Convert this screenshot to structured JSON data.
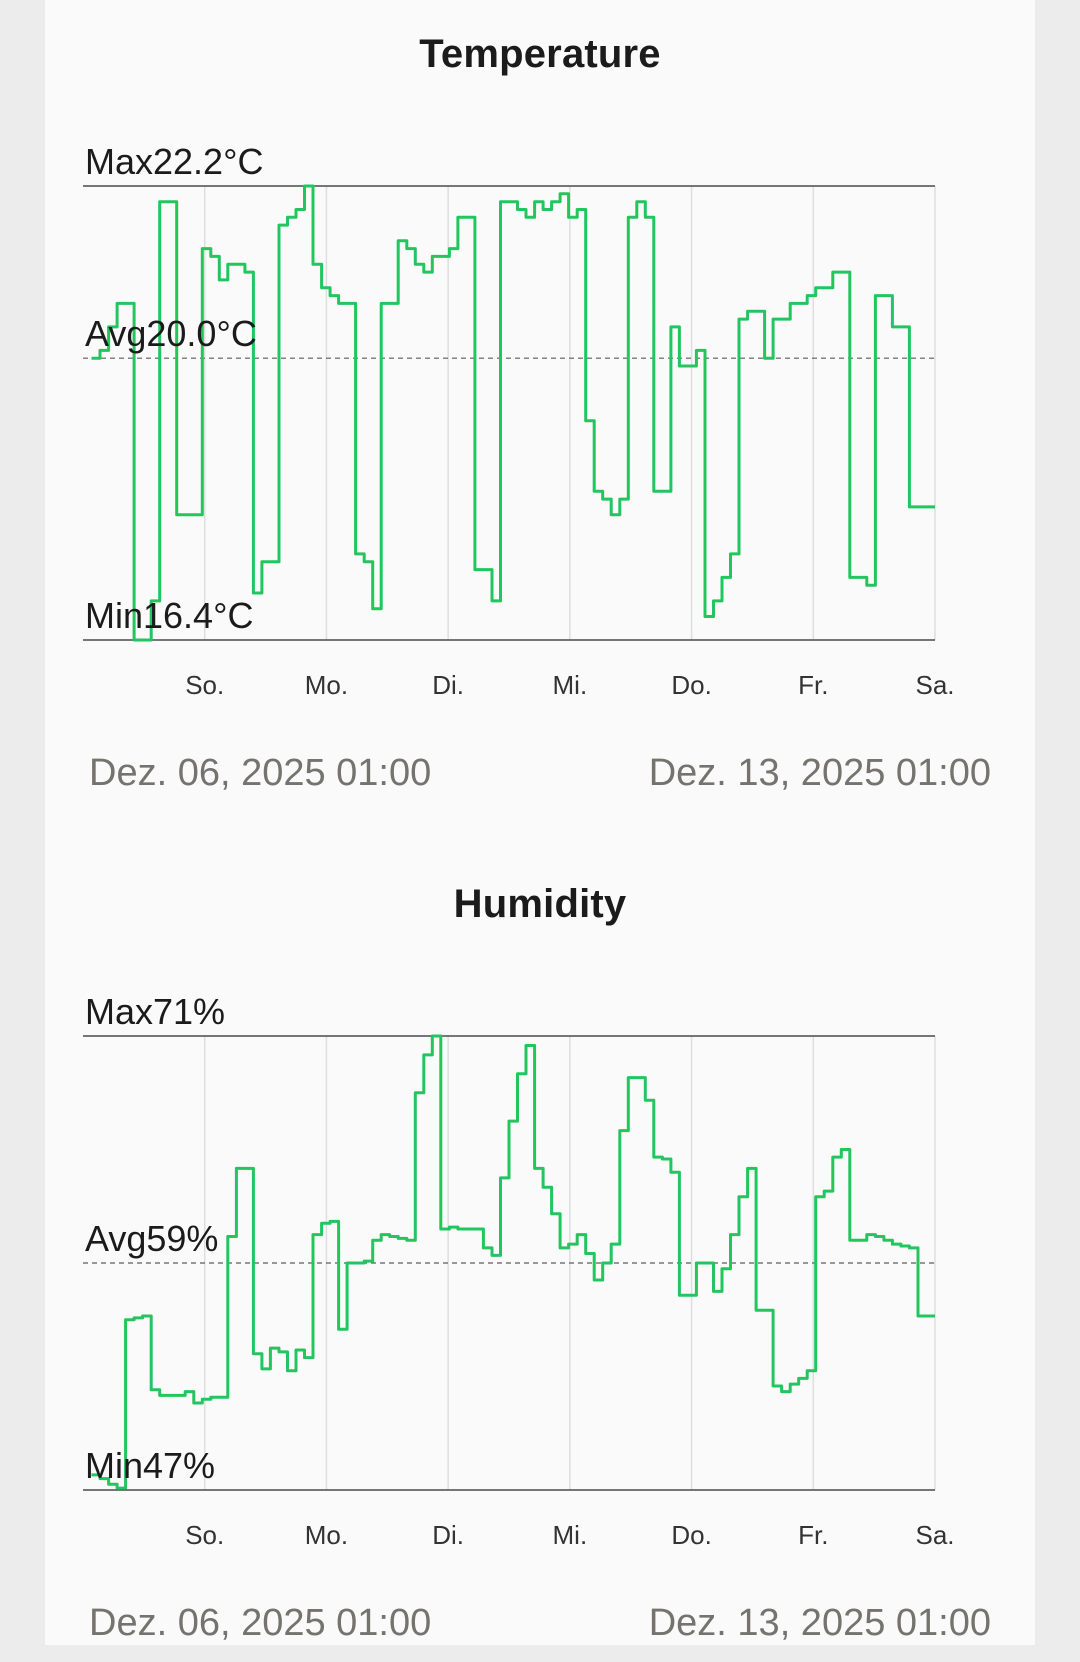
{
  "colors": {
    "line": "#22c55e",
    "frame": "#4a4a4a",
    "grid": "#dedede",
    "avg_line": "#5c5c5c",
    "date_text": "#75736e",
    "background": "#fafafa"
  },
  "charts": {
    "temperature": {
      "title": "Temperature",
      "max_label": "Max22.2°C",
      "avg_label": "Avg20.0°C",
      "min_label": "Min16.4°C",
      "start_label": "Dez. 06, 2025 01:00",
      "end_label": "Dez. 13, 2025 01:00"
    },
    "humidity": {
      "title": "Humidity",
      "max_label": "Max71%",
      "avg_label": "Avg59%",
      "min_label": "Min47%",
      "start_label": "Dez. 06, 2025 01:00",
      "end_label": "Dez. 13, 2025 01:00"
    }
  },
  "chart_data": [
    {
      "type": "line",
      "title": "Temperature",
      "unit": "°C",
      "x_ticks": [
        "So.",
        "Mo.",
        "Di.",
        "Mi.",
        "Do.",
        "Fr.",
        "Sa."
      ],
      "x_range": [
        "Dez. 06, 2025 01:00",
        "Dez. 13, 2025 01:00"
      ],
      "max": 22.2,
      "avg": 20.0,
      "min": 16.4,
      "ylim": [
        16.4,
        22.2
      ],
      "grid": "vertical",
      "x": [
        0.01,
        0.02,
        0.03,
        0.04,
        0.05,
        0.06,
        0.07,
        0.08,
        0.09,
        0.1,
        0.11,
        0.12,
        0.13,
        0.14,
        0.15,
        0.16,
        0.17,
        0.18,
        0.19,
        0.2,
        0.21,
        0.22,
        0.23,
        0.24,
        0.25,
        0.26,
        0.27,
        0.28,
        0.29,
        0.3,
        0.31,
        0.32,
        0.33,
        0.34,
        0.35,
        0.36,
        0.37,
        0.38,
        0.39,
        0.4,
        0.41,
        0.42,
        0.43,
        0.44,
        0.45,
        0.46,
        0.47,
        0.48,
        0.49,
        0.5,
        0.51,
        0.52,
        0.53,
        0.54,
        0.55,
        0.56,
        0.57,
        0.58,
        0.59,
        0.6,
        0.61,
        0.62,
        0.63,
        0.64,
        0.65,
        0.66,
        0.67,
        0.68,
        0.69,
        0.7,
        0.71,
        0.72,
        0.73,
        0.74,
        0.75,
        0.76,
        0.77,
        0.78,
        0.79,
        0.8,
        0.81,
        0.82,
        0.83,
        0.84,
        0.85,
        0.86,
        0.87,
        0.88,
        0.89,
        0.9,
        0.91,
        0.92,
        0.93,
        0.94,
        0.95,
        0.96,
        0.97,
        0.98,
        0.99,
        1.0
      ],
      "series": [
        {
          "values": [
            20.0,
            20.1,
            20.4,
            20.7,
            20.7,
            16.4,
            16.4,
            16.9,
            22.0,
            22.0,
            18.0,
            18.0,
            18.0,
            21.4,
            21.3,
            21.0,
            21.2,
            21.2,
            21.1,
            17.0,
            17.4,
            17.4,
            21.7,
            21.8,
            21.9,
            22.2,
            21.2,
            20.9,
            20.8,
            20.7,
            20.7,
            17.5,
            17.4,
            16.8,
            20.7,
            20.7,
            21.5,
            21.4,
            21.2,
            21.1,
            21.3,
            21.3,
            21.4,
            21.8,
            21.8,
            17.3,
            17.3,
            16.9,
            22.0,
            22.0,
            21.9,
            21.8,
            22.0,
            21.9,
            22.0,
            22.1,
            21.8,
            21.9,
            19.2,
            18.3,
            18.2,
            18.0,
            18.2,
            21.8,
            22.0,
            21.8,
            18.3,
            18.3,
            20.4,
            19.9,
            19.9,
            20.1,
            16.7,
            16.9,
            17.2,
            17.5,
            20.5,
            20.6,
            20.6,
            20.0,
            20.5,
            20.5,
            20.7,
            20.7,
            20.8,
            20.9,
            20.9,
            21.1,
            21.1,
            17.2,
            17.2,
            17.1,
            20.8,
            20.8,
            20.4,
            20.4,
            18.1,
            18.1,
            18.1,
            18.1
          ]
        }
      ]
    },
    {
      "type": "line",
      "title": "Humidity",
      "unit": "%",
      "x_ticks": [
        "So.",
        "Mo.",
        "Di.",
        "Mi.",
        "Do.",
        "Fr.",
        "Sa."
      ],
      "x_range": [
        "Dez. 06, 2025 01:00",
        "Dez. 13, 2025 01:00"
      ],
      "max": 71,
      "avg": 59,
      "min": 47,
      "ylim": [
        47,
        71
      ],
      "grid": "vertical",
      "x": [
        0.01,
        0.02,
        0.03,
        0.04,
        0.05,
        0.06,
        0.07,
        0.08,
        0.09,
        0.1,
        0.11,
        0.12,
        0.13,
        0.14,
        0.15,
        0.16,
        0.17,
        0.18,
        0.19,
        0.2,
        0.21,
        0.22,
        0.23,
        0.24,
        0.25,
        0.26,
        0.27,
        0.28,
        0.29,
        0.3,
        0.31,
        0.32,
        0.33,
        0.34,
        0.35,
        0.36,
        0.37,
        0.38,
        0.39,
        0.4,
        0.41,
        0.42,
        0.43,
        0.44,
        0.45,
        0.46,
        0.47,
        0.48,
        0.49,
        0.5,
        0.51,
        0.52,
        0.53,
        0.54,
        0.55,
        0.56,
        0.57,
        0.58,
        0.59,
        0.6,
        0.61,
        0.62,
        0.63,
        0.64,
        0.65,
        0.66,
        0.67,
        0.68,
        0.69,
        0.7,
        0.71,
        0.72,
        0.73,
        0.74,
        0.75,
        0.76,
        0.77,
        0.78,
        0.79,
        0.8,
        0.81,
        0.82,
        0.83,
        0.84,
        0.85,
        0.86,
        0.87,
        0.88,
        0.89,
        0.9,
        0.91,
        0.92,
        0.93,
        0.94,
        0.95,
        0.96,
        0.97,
        0.98,
        0.99,
        1.0
      ],
      "series": [
        {
          "values": [
            47.8,
            47.6,
            47.3,
            47.1,
            56.0,
            56.1,
            56.2,
            52.3,
            52.0,
            52.0,
            52.0,
            52.2,
            51.6,
            51.8,
            51.9,
            51.9,
            60.4,
            64.0,
            64.0,
            54.2,
            53.4,
            54.5,
            54.3,
            53.3,
            54.4,
            54.0,
            60.5,
            61.1,
            61.2,
            55.5,
            59.0,
            59.0,
            59.1,
            60.2,
            60.5,
            60.4,
            60.3,
            60.2,
            68.0,
            70.0,
            71.0,
            60.8,
            60.9,
            60.8,
            60.8,
            60.8,
            59.8,
            59.4,
            63.5,
            66.5,
            69.0,
            70.5,
            64.0,
            63.0,
            61.6,
            59.8,
            60.0,
            60.5,
            59.5,
            58.1,
            59.0,
            60.0,
            66.0,
            68.8,
            68.8,
            67.6,
            64.6,
            64.5,
            63.8,
            57.3,
            57.3,
            59.0,
            59.0,
            57.5,
            58.7,
            60.5,
            62.5,
            64.0,
            56.5,
            56.5,
            52.5,
            52.2,
            52.6,
            52.9,
            53.3,
            62.5,
            62.8,
            64.6,
            65.0,
            60.2,
            60.2,
            60.5,
            60.4,
            60.2,
            60.0,
            59.9,
            59.8,
            56.2,
            56.2,
            56.2
          ]
        }
      ]
    }
  ]
}
